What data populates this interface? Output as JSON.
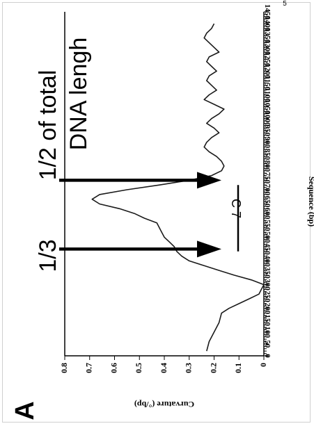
{
  "panel_letter": "A",
  "top_edge_text": "5",
  "chart_data": {
    "type": "line",
    "orientation": "rotated-90-ccw",
    "title": "",
    "xlabel": "Sequence (bp)",
    "ylabel": "Curvature (°/bp)",
    "xlim": [
      0,
      1450
    ],
    "ylim": [
      0,
      0.8
    ],
    "x_ticks": [
      0,
      50,
      100,
      150,
      200,
      250,
      300,
      350,
      400,
      450,
      500,
      550,
      600,
      650,
      700,
      750,
      800,
      850,
      900,
      950,
      1000,
      1050,
      1100,
      1150,
      1200,
      1250,
      1300,
      1350,
      1400,
      1450
    ],
    "y_ticks": [
      0,
      0.1,
      0.2,
      0.3,
      0.4,
      0.5,
      0.6,
      0.7,
      0.8
    ],
    "y_tick_labels": [
      "0",
      "0.1",
      "0.2",
      "0.3",
      "0.4",
      "0.5",
      "0.6",
      "0.7",
      "0.8"
    ],
    "series": [
      {
        "x": [
          20,
          60,
          100,
          140,
          180,
          200,
          220,
          240,
          260,
          280,
          300,
          320,
          340,
          360,
          380,
          400,
          420,
          440,
          460,
          480,
          500,
          520,
          540,
          560,
          580,
          600,
          620,
          640,
          660,
          680,
          700,
          720,
          740,
          760,
          780,
          800,
          820,
          840,
          860,
          880,
          900,
          920,
          940,
          960,
          980,
          1000,
          1020,
          1040,
          1060,
          1080,
          1100,
          1120,
          1140,
          1160,
          1180,
          1200,
          1220,
          1240,
          1260,
          1280,
          1300,
          1320,
          1340,
          1360,
          1380,
          1400
        ],
        "y": [
          0.23,
          0.22,
          0.2,
          0.18,
          0.17,
          0.14,
          0.1,
          0.06,
          0.02,
          0.01,
          0.0,
          0.05,
          0.12,
          0.18,
          0.24,
          0.3,
          0.33,
          0.35,
          0.36,
          0.38,
          0.4,
          0.41,
          0.42,
          0.43,
          0.48,
          0.52,
          0.58,
          0.66,
          0.69,
          0.66,
          0.55,
          0.42,
          0.3,
          0.21,
          0.17,
          0.16,
          0.17,
          0.19,
          0.22,
          0.24,
          0.23,
          0.21,
          0.18,
          0.2,
          0.23,
          0.21,
          0.18,
          0.16,
          0.2,
          0.24,
          0.22,
          0.19,
          0.21,
          0.23,
          0.22,
          0.19,
          0.21,
          0.23,
          0.22,
          0.18,
          0.2,
          0.22,
          0.24,
          0.23,
          0.21,
          0.2
        ]
      }
    ],
    "annotations": {
      "arrow_left_x": 450,
      "arrow_right_x": 740,
      "label_one_third": "1/3",
      "label_one_half": "1/2 of total",
      "label_one_half_line2": "DNA lengh",
      "c7_label": "C 7",
      "c7_bar_range": [
        440,
        720
      ]
    }
  }
}
